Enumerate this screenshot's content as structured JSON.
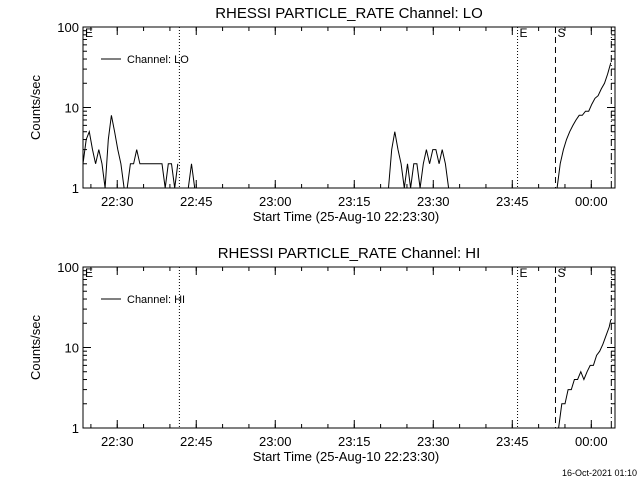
{
  "chart_data": [
    {
      "type": "line",
      "title": "RHESSI PARTICLE_RATE Channel: LO",
      "xlabel": "Start Time (25-Aug-10 22:23:30)",
      "ylabel": "Counts/sec",
      "x_unit": "minutes after 22:23:30",
      "xlim": [
        0,
        101
      ],
      "ylim": [
        1,
        100
      ],
      "y_scale": "log",
      "grid": false,
      "legend": "top-left",
      "x_ticks": [
        {
          "t": 6.5,
          "label": "22:30"
        },
        {
          "t": 21.5,
          "label": "22:45"
        },
        {
          "t": 36.5,
          "label": "23:00"
        },
        {
          "t": 51.5,
          "label": "23:15"
        },
        {
          "t": 66.5,
          "label": "23:30"
        },
        {
          "t": 81.5,
          "label": "23:45"
        },
        {
          "t": 96.5,
          "label": "00:00"
        }
      ],
      "y_ticks": [
        {
          "v": 1,
          "label": "1"
        },
        {
          "v": 10,
          "label": "10"
        },
        {
          "v": 100,
          "label": "100"
        }
      ],
      "markers": [
        {
          "t": 0,
          "label": "E",
          "style": "dotted"
        },
        {
          "t": 18.3,
          "label": "",
          "style": "dotted"
        },
        {
          "t": 82.5,
          "label": "E",
          "style": "dotted"
        },
        {
          "t": 89.7,
          "label": "S",
          "style": "dashed"
        },
        {
          "t": 100.3,
          "label": "",
          "style": "dashdot"
        }
      ],
      "series": [
        {
          "name": "Channel: LO",
          "x": [
            0,
            0.6,
            1.2,
            1.8,
            2.4,
            3.0,
            3.6,
            4.2,
            4.8,
            5.4,
            6.0,
            6.6,
            7.2,
            7.8,
            8.4,
            9.0,
            9.6,
            10.2,
            10.8,
            11.4,
            12.0,
            12.6,
            13.2,
            13.8,
            14.4,
            15.0,
            15.6,
            16.2,
            16.8,
            17.4,
            18.0,
            20.0,
            20.6,
            21.2,
            58.0,
            58.6,
            59.2,
            59.8,
            60.4,
            61.0,
            61.6,
            62.2,
            62.8,
            63.4,
            64.0,
            64.6,
            65.2,
            65.8,
            66.4,
            67.0,
            67.6,
            68.2,
            68.8,
            69.4,
            90.0,
            90.6,
            91.2,
            91.8,
            92.4,
            93.0,
            93.6,
            94.2,
            94.8,
            95.4,
            96.0,
            96.6,
            97.2,
            97.8,
            98.4,
            99.0,
            99.6,
            100.2
          ],
          "y": [
            2,
            4,
            5,
            3,
            2,
            3,
            2,
            1,
            4,
            8,
            5,
            3,
            2,
            1,
            1,
            2,
            2,
            3,
            2,
            2,
            2,
            2,
            2,
            2,
            2,
            2,
            1,
            2,
            2,
            1,
            2,
            1,
            2,
            1,
            1,
            3,
            5,
            3,
            2,
            1,
            2,
            1,
            2,
            2,
            1,
            2,
            3,
            2,
            3,
            3,
            2,
            3,
            2,
            1,
            1,
            2,
            3,
            4,
            5,
            6,
            7,
            8,
            8,
            9,
            9,
            11,
            13,
            14,
            17,
            20,
            26,
            36
          ]
        }
      ]
    },
    {
      "type": "line",
      "title": "RHESSI PARTICLE_RATE Channel: HI",
      "xlabel": "Start Time (25-Aug-10 22:23:30)",
      "ylabel": "Counts/sec",
      "x_unit": "minutes after 22:23:30",
      "xlim": [
        0,
        101
      ],
      "ylim": [
        1,
        100
      ],
      "y_scale": "log",
      "grid": false,
      "legend": "top-left",
      "x_ticks": [
        {
          "t": 6.5,
          "label": "22:30"
        },
        {
          "t": 21.5,
          "label": "22:45"
        },
        {
          "t": 36.5,
          "label": "23:00"
        },
        {
          "t": 51.5,
          "label": "23:15"
        },
        {
          "t": 66.5,
          "label": "23:30"
        },
        {
          "t": 81.5,
          "label": "23:45"
        },
        {
          "t": 96.5,
          "label": "00:00"
        }
      ],
      "y_ticks": [
        {
          "v": 1,
          "label": "1"
        },
        {
          "v": 10,
          "label": "10"
        },
        {
          "v": 100,
          "label": "100"
        }
      ],
      "markers": [
        {
          "t": 0,
          "label": "E",
          "style": "dotted"
        },
        {
          "t": 18.3,
          "label": "",
          "style": "dotted"
        },
        {
          "t": 82.5,
          "label": "E",
          "style": "dotted"
        },
        {
          "t": 89.7,
          "label": "S",
          "style": "dashed"
        },
        {
          "t": 100.3,
          "label": "",
          "style": "dashdot"
        }
      ],
      "series": [
        {
          "name": "Channel: HI",
          "x": [
            90.3,
            90.9,
            91.5,
            92.1,
            92.7,
            93.3,
            93.9,
            94.5,
            95.1,
            95.7,
            96.3,
            96.9,
            97.5,
            98.1,
            98.7,
            99.3,
            99.9,
            100.2
          ],
          "y": [
            1,
            2,
            2,
            3,
            3,
            4,
            4,
            5,
            4,
            5,
            6,
            6,
            8,
            9,
            11,
            14,
            18,
            22
          ]
        }
      ]
    }
  ],
  "footer": {
    "timestamp": "16-Oct-2021 01:10"
  }
}
